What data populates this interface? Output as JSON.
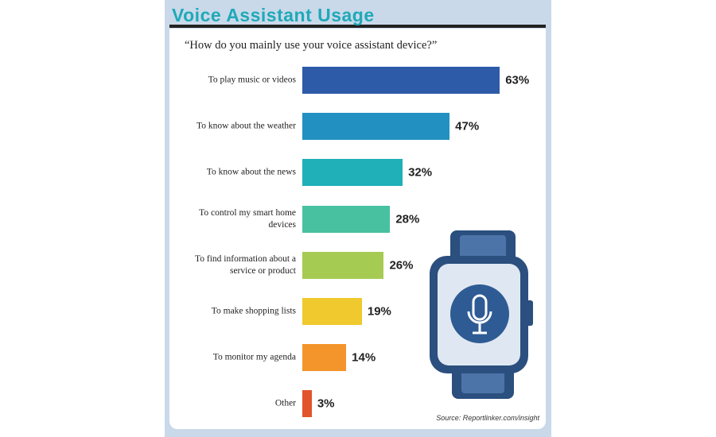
{
  "chart_data": {
    "type": "bar",
    "orientation": "horizontal",
    "title": "Voice Assistant Usage",
    "subtitle": "“How do you mainly use your voice assistant device?”",
    "categories": [
      "To play music or videos",
      "To know about the weather",
      "To know about the news",
      "To control my smart home devices",
      "To find information about a service or product",
      "To make shopping lists",
      "To monitor my agenda",
      "Other"
    ],
    "values": [
      63,
      47,
      32,
      28,
      26,
      19,
      14,
      3
    ],
    "value_labels": [
      "63%",
      "47%",
      "32%",
      "28%",
      "26%",
      "19%",
      "14%",
      "3%"
    ],
    "colors": [
      "#2d5ba8",
      "#2290c0",
      "#1fb0b8",
      "#47c1a0",
      "#a6cb52",
      "#f0c92e",
      "#f3952a",
      "#e2542a"
    ],
    "source": "Source: Reportlinker.com/insight"
  }
}
